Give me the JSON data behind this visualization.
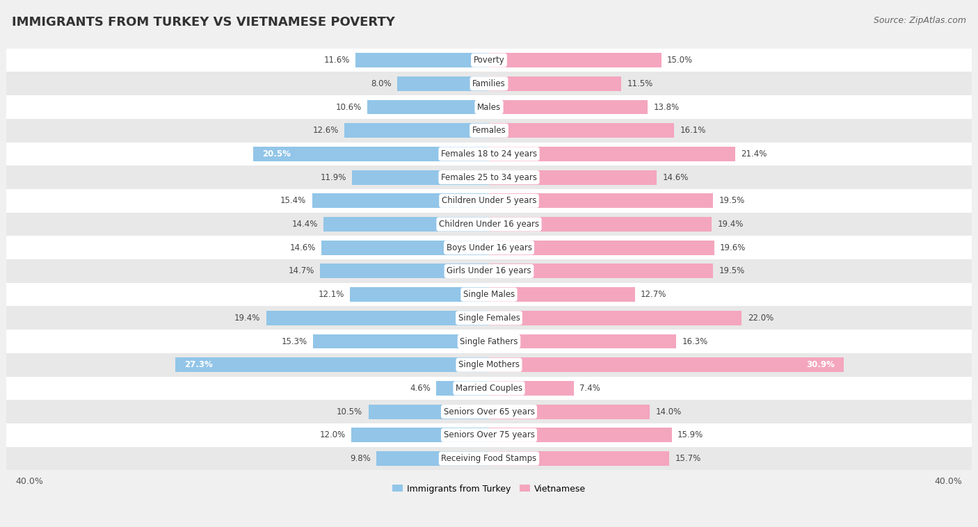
{
  "title": "IMMIGRANTS FROM TURKEY VS VIETNAMESE POVERTY",
  "source": "Source: ZipAtlas.com",
  "categories": [
    "Poverty",
    "Families",
    "Males",
    "Females",
    "Females 18 to 24 years",
    "Females 25 to 34 years",
    "Children Under 5 years",
    "Children Under 16 years",
    "Boys Under 16 years",
    "Girls Under 16 years",
    "Single Males",
    "Single Females",
    "Single Fathers",
    "Single Mothers",
    "Married Couples",
    "Seniors Over 65 years",
    "Seniors Over 75 years",
    "Receiving Food Stamps"
  ],
  "turkey_values": [
    11.6,
    8.0,
    10.6,
    12.6,
    20.5,
    11.9,
    15.4,
    14.4,
    14.6,
    14.7,
    12.1,
    19.4,
    15.3,
    27.3,
    4.6,
    10.5,
    12.0,
    9.8
  ],
  "vietnamese_values": [
    15.0,
    11.5,
    13.8,
    16.1,
    21.4,
    14.6,
    19.5,
    19.4,
    19.6,
    19.5,
    12.7,
    22.0,
    16.3,
    30.9,
    7.4,
    14.0,
    15.9,
    15.7
  ],
  "turkey_color": "#92c5e8",
  "vietnamese_color": "#f4a6be",
  "turkey_label": "Immigrants from Turkey",
  "vietnamese_label": "Vietnamese",
  "xlim": 40.0,
  "background_color": "#f0f0f0",
  "row_bg_color": "#ffffff",
  "row_alt_color": "#e8e8e8",
  "title_fontsize": 13,
  "source_fontsize": 9,
  "cat_fontsize": 8.5,
  "value_fontsize": 8.5,
  "axis_fontsize": 9,
  "legend_fontsize": 9
}
